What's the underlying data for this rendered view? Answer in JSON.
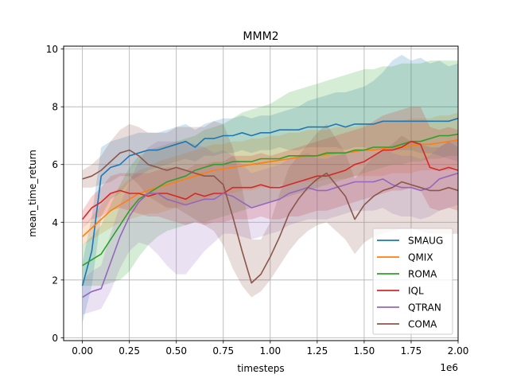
{
  "chart_data": {
    "type": "line",
    "title": "MMM2",
    "xlabel": "timesteps",
    "ylabel": "mean_time_return",
    "x_offset_label": "1e6",
    "xlim": [
      -0.1,
      2.0
    ],
    "ylim": [
      -0.1,
      10.1
    ],
    "grid": true,
    "legend_position": "lower-right",
    "x_ticks": [
      0.0,
      0.25,
      0.5,
      0.75,
      1.0,
      1.25,
      1.5,
      1.75,
      2.0
    ],
    "x_tick_labels": [
      "0.00",
      "0.25",
      "0.50",
      "0.75",
      "1.00",
      "1.25",
      "1.50",
      "1.75",
      "2.00"
    ],
    "y_ticks": [
      0,
      2,
      4,
      6,
      8,
      10
    ],
    "y_tick_labels": [
      "0",
      "2",
      "4",
      "6",
      "8",
      "10"
    ],
    "x": [
      0.0,
      0.05,
      0.1,
      0.15,
      0.2,
      0.25,
      0.3,
      0.35,
      0.4,
      0.45,
      0.5,
      0.55,
      0.6,
      0.65,
      0.7,
      0.75,
      0.8,
      0.85,
      0.9,
      0.95,
      1.0,
      1.05,
      1.1,
      1.15,
      1.2,
      1.25,
      1.3,
      1.35,
      1.4,
      1.45,
      1.5,
      1.55,
      1.6,
      1.65,
      1.7,
      1.75,
      1.8,
      1.85,
      1.9,
      1.95,
      2.0
    ],
    "series": [
      {
        "name": "SMAUG",
        "color": "#1f77b4",
        "values": [
          1.8,
          3.0,
          5.6,
          5.9,
          6.0,
          6.3,
          6.4,
          6.5,
          6.5,
          6.6,
          6.7,
          6.8,
          6.6,
          6.9,
          6.9,
          7.0,
          7.0,
          7.1,
          7.0,
          7.1,
          7.1,
          7.2,
          7.2,
          7.2,
          7.3,
          7.3,
          7.3,
          7.4,
          7.3,
          7.4,
          7.4,
          7.4,
          7.5,
          7.5,
          7.5,
          7.5,
          7.5,
          7.5,
          7.5,
          7.5,
          7.6
        ],
        "lower": [
          0.5,
          1.8,
          4.2,
          4.8,
          5.0,
          5.4,
          5.6,
          5.8,
          5.9,
          6.0,
          6.1,
          6.2,
          6.1,
          6.3,
          6.3,
          6.4,
          6.4,
          6.5,
          6.4,
          6.5,
          6.5,
          6.6,
          6.5,
          6.5,
          6.6,
          6.6,
          6.6,
          6.6,
          6.5,
          6.6,
          6.6,
          6.5,
          6.6,
          6.5,
          6.5,
          6.5,
          6.4,
          6.4,
          6.3,
          6.2,
          6.1
        ],
        "upper": [
          2.6,
          4.2,
          6.6,
          6.8,
          6.9,
          7.0,
          7.1,
          7.1,
          7.1,
          7.2,
          7.3,
          7.4,
          7.2,
          7.4,
          7.5,
          7.6,
          7.6,
          7.7,
          7.6,
          7.7,
          7.7,
          7.8,
          7.9,
          8.0,
          8.2,
          8.3,
          8.4,
          8.5,
          8.5,
          8.6,
          8.7,
          8.9,
          9.2,
          9.6,
          9.8,
          9.6,
          9.7,
          9.5,
          9.6,
          9.4,
          9.5
        ]
      },
      {
        "name": "QMIX",
        "color": "#ff7f0e",
        "values": [
          3.5,
          3.8,
          4.1,
          4.4,
          4.6,
          4.8,
          5.0,
          5.1,
          5.2,
          5.3,
          5.4,
          5.5,
          5.6,
          5.7,
          5.8,
          5.85,
          5.9,
          5.95,
          6.0,
          6.05,
          6.1,
          6.15,
          6.2,
          6.25,
          6.3,
          6.3,
          6.35,
          6.4,
          6.4,
          6.45,
          6.5,
          6.5,
          6.55,
          6.6,
          6.6,
          6.65,
          6.7,
          6.7,
          6.75,
          6.8,
          6.85
        ],
        "lower": [
          3.2,
          3.4,
          3.6,
          3.8,
          4.0,
          4.1,
          4.2,
          4.3,
          4.3,
          4.4,
          4.5,
          4.6,
          4.7,
          4.8,
          4.9,
          5.0,
          5.0,
          5.1,
          5.1,
          5.2,
          5.2,
          5.3,
          5.3,
          5.4,
          5.4,
          5.4,
          5.5,
          5.5,
          5.5,
          5.6,
          5.6,
          5.6,
          5.6,
          5.7,
          5.7,
          5.7,
          5.8,
          5.8,
          5.8,
          5.8,
          5.9
        ],
        "upper": [
          3.8,
          4.2,
          4.6,
          5.0,
          5.2,
          5.5,
          5.8,
          5.9,
          6.1,
          6.2,
          6.3,
          6.4,
          6.5,
          6.6,
          6.7,
          6.7,
          6.8,
          6.8,
          6.9,
          6.9,
          7.0,
          7.0,
          7.1,
          7.1,
          7.2,
          7.2,
          7.2,
          7.3,
          7.3,
          7.3,
          7.4,
          7.4,
          7.5,
          7.5,
          7.5,
          7.6,
          7.6,
          7.6,
          7.7,
          7.7,
          7.8
        ]
      },
      {
        "name": "ROMA",
        "color": "#2ca02c",
        "values": [
          2.5,
          2.7,
          2.9,
          3.4,
          3.9,
          4.4,
          4.8,
          5.0,
          5.2,
          5.4,
          5.5,
          5.6,
          5.8,
          5.9,
          6.0,
          6.0,
          6.1,
          6.1,
          6.1,
          6.2,
          6.2,
          6.2,
          6.3,
          6.3,
          6.3,
          6.3,
          6.4,
          6.4,
          6.4,
          6.5,
          6.5,
          6.6,
          6.6,
          6.6,
          6.7,
          6.8,
          6.8,
          6.9,
          7.0,
          7.0,
          7.05
        ],
        "lower": [
          1.8,
          1.8,
          1.8,
          1.9,
          2.0,
          2.3,
          2.8,
          3.2,
          3.5,
          3.7,
          3.8,
          3.9,
          4.0,
          4.0,
          4.1,
          4.2,
          4.3,
          4.4,
          4.5,
          4.6,
          4.7,
          4.8,
          4.9,
          5.0,
          5.1,
          5.2,
          5.3,
          5.4,
          5.5,
          5.6,
          5.7,
          5.8,
          5.9,
          6.0,
          6.0,
          6.1,
          6.1,
          6.2,
          6.2,
          6.3,
          6.3
        ],
        "upper": [
          3.2,
          3.5,
          3.9,
          4.6,
          5.3,
          5.9,
          6.3,
          6.5,
          6.6,
          6.7,
          6.8,
          6.9,
          7.0,
          7.2,
          7.3,
          7.4,
          7.6,
          7.8,
          7.9,
          8.0,
          8.1,
          8.3,
          8.5,
          8.6,
          8.7,
          8.8,
          8.9,
          9.0,
          9.1,
          9.2,
          9.3,
          9.3,
          9.4,
          9.4,
          9.5,
          9.5,
          9.5,
          9.6,
          9.6,
          9.6,
          9.6
        ]
      },
      {
        "name": "IQL",
        "color": "#d62728",
        "values": [
          4.1,
          4.5,
          4.7,
          5.0,
          5.1,
          5.0,
          5.0,
          4.9,
          5.0,
          5.0,
          4.9,
          4.8,
          5.0,
          4.9,
          5.0,
          5.0,
          5.2,
          5.2,
          5.2,
          5.3,
          5.2,
          5.2,
          5.3,
          5.4,
          5.5,
          5.6,
          5.6,
          5.7,
          5.8,
          6.0,
          6.1,
          6.3,
          6.5,
          6.5,
          6.6,
          6.8,
          6.7,
          5.9,
          5.8,
          5.9,
          5.8
        ],
        "lower": [
          3.8,
          4.1,
          4.2,
          4.4,
          4.5,
          4.4,
          4.3,
          4.2,
          4.2,
          4.1,
          4.0,
          3.9,
          4.0,
          3.9,
          4.0,
          4.0,
          4.1,
          4.1,
          4.1,
          4.2,
          4.1,
          4.1,
          4.2,
          4.2,
          4.3,
          4.4,
          4.4,
          4.5,
          4.6,
          4.7,
          4.8,
          4.9,
          5.0,
          5.1,
          5.1,
          5.2,
          5.1,
          4.5,
          4.4,
          4.5,
          4.4
        ],
        "upper": [
          4.4,
          4.9,
          5.2,
          5.6,
          5.7,
          5.7,
          5.7,
          5.7,
          5.8,
          5.9,
          5.9,
          5.8,
          6.0,
          6.0,
          6.1,
          6.1,
          6.3,
          6.3,
          6.3,
          6.4,
          6.3,
          6.4,
          6.5,
          6.6,
          6.7,
          6.8,
          6.9,
          7.0,
          7.1,
          7.2,
          7.3,
          7.5,
          7.7,
          7.8,
          7.9,
          8.0,
          8.0,
          7.3,
          7.2,
          7.3,
          7.2
        ]
      },
      {
        "name": "QTRAN",
        "color": "#9467bd",
        "values": [
          1.4,
          1.6,
          1.7,
          2.6,
          3.5,
          4.2,
          4.7,
          5.0,
          5.0,
          4.8,
          4.7,
          4.6,
          4.7,
          4.8,
          4.8,
          5.0,
          4.9,
          4.7,
          4.5,
          4.6,
          4.7,
          4.8,
          5.0,
          5.1,
          5.2,
          5.1,
          5.1,
          5.2,
          5.3,
          5.4,
          5.4,
          5.4,
          5.5,
          5.3,
          5.2,
          5.2,
          5.1,
          5.2,
          5.5,
          5.6,
          5.7
        ],
        "lower": [
          0.8,
          0.9,
          1.0,
          1.6,
          2.4,
          3.0,
          3.3,
          3.2,
          2.9,
          2.5,
          2.2,
          2.2,
          2.6,
          3.0,
          3.3,
          3.6,
          3.6,
          3.5,
          3.4,
          3.5,
          3.6,
          3.7,
          3.9,
          4.0,
          4.1,
          4.1,
          4.1,
          4.2,
          4.3,
          4.4,
          4.4,
          4.4,
          4.5,
          4.3,
          4.2,
          4.2,
          4.1,
          4.2,
          4.4,
          4.5,
          4.6
        ],
        "upper": [
          2.0,
          2.3,
          2.5,
          3.6,
          4.6,
          5.4,
          6.1,
          6.6,
          6.8,
          6.8,
          6.8,
          6.8,
          6.7,
          6.6,
          6.4,
          6.5,
          6.3,
          6.0,
          5.7,
          5.8,
          5.9,
          6.0,
          6.2,
          6.3,
          6.4,
          6.2,
          6.2,
          6.3,
          6.4,
          6.5,
          6.5,
          6.5,
          6.6,
          6.4,
          6.3,
          6.3,
          6.2,
          6.3,
          6.6,
          6.8,
          6.9
        ]
      },
      {
        "name": "COMA",
        "color": "#8c564b",
        "values": [
          5.5,
          5.6,
          5.8,
          6.1,
          6.4,
          6.5,
          6.3,
          6.0,
          5.9,
          5.8,
          5.9,
          5.8,
          5.7,
          5.6,
          5.6,
          5.3,
          4.2,
          3.0,
          1.9,
          2.2,
          2.8,
          3.5,
          4.3,
          4.8,
          5.2,
          5.5,
          5.7,
          5.3,
          4.9,
          4.1,
          4.6,
          4.9,
          5.1,
          5.2,
          5.4,
          5.3,
          5.2,
          5.1,
          5.1,
          5.2,
          5.1
        ],
        "lower": [
          5.2,
          5.2,
          5.3,
          5.4,
          5.6,
          5.6,
          5.3,
          4.9,
          4.7,
          4.5,
          4.5,
          4.3,
          4.1,
          3.9,
          3.7,
          3.2,
          2.4,
          1.8,
          1.4,
          1.6,
          2.0,
          2.5,
          3.0,
          3.4,
          3.7,
          3.9,
          4.0,
          3.7,
          3.4,
          2.9,
          3.3,
          3.5,
          3.6,
          3.7,
          3.8,
          3.8,
          3.7,
          3.6,
          3.6,
          3.6,
          3.6
        ],
        "upper": [
          5.8,
          6.0,
          6.3,
          6.8,
          7.2,
          7.4,
          7.3,
          7.1,
          7.1,
          7.1,
          7.3,
          7.3,
          7.3,
          7.3,
          7.5,
          7.4,
          6.6,
          5.2,
          3.4,
          3.4,
          4.0,
          5.0,
          5.9,
          6.3,
          6.7,
          7.1,
          7.4,
          6.9,
          6.4,
          5.5,
          5.9,
          6.3,
          6.5,
          6.7,
          7.0,
          6.8,
          6.7,
          6.6,
          6.6,
          6.8,
          6.6
        ]
      }
    ]
  }
}
